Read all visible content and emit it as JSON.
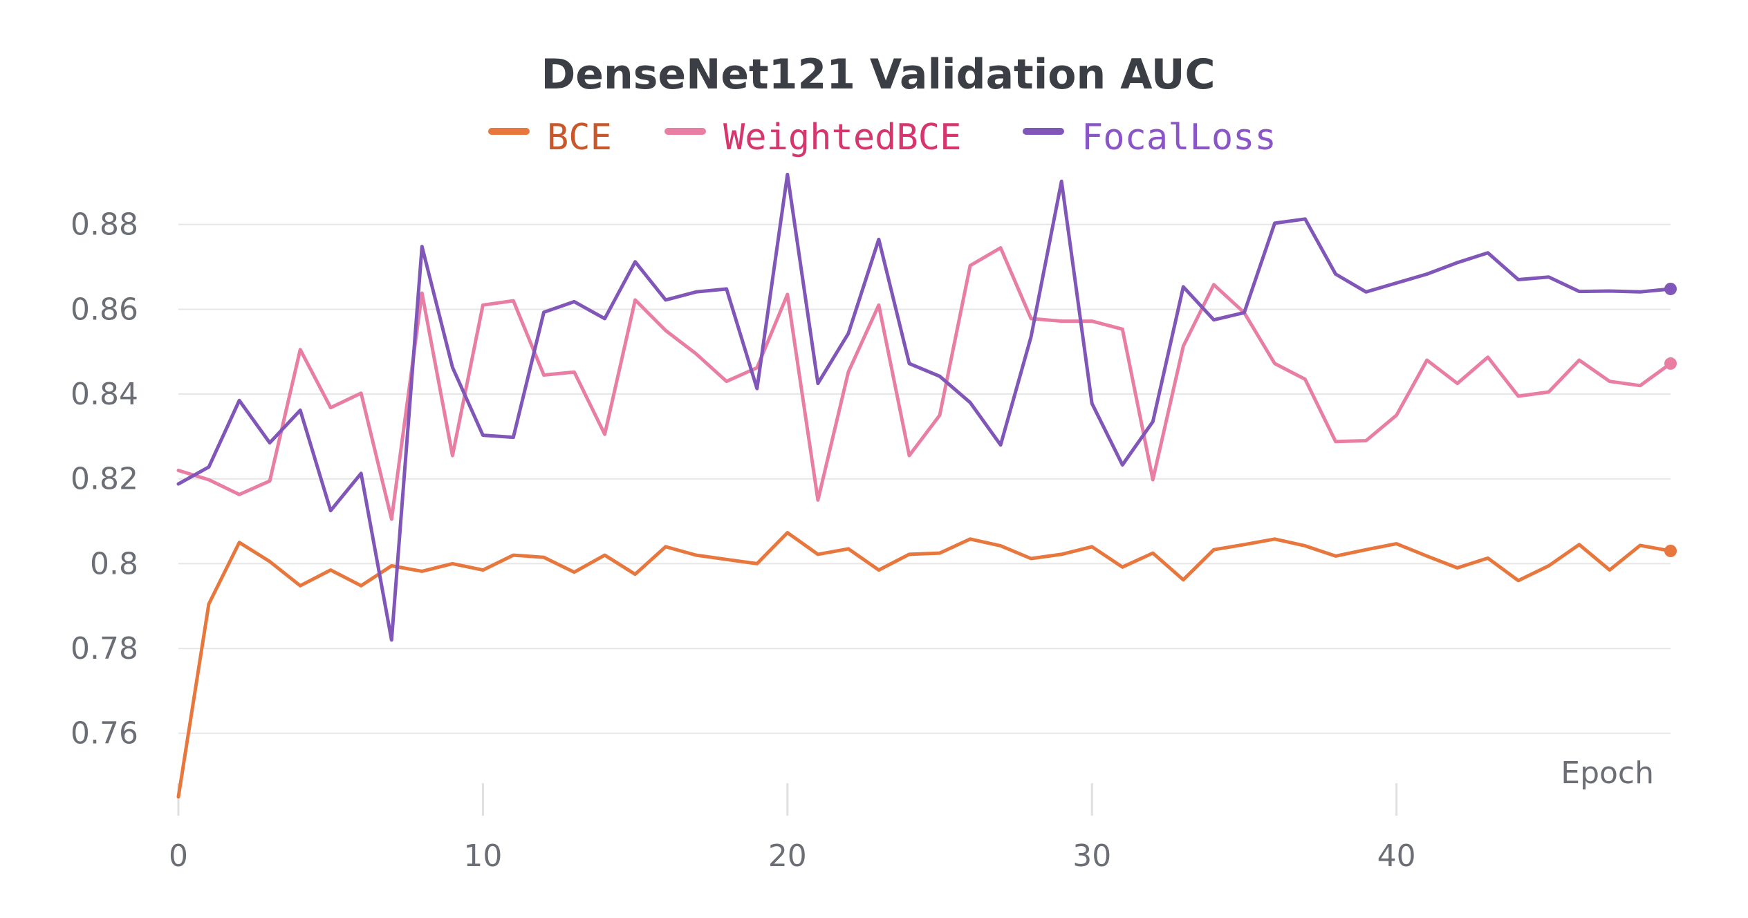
{
  "chart_data": {
    "type": "line",
    "title": "DenseNet121 Validation AUC",
    "xlabel": "Epoch",
    "ylabel": "",
    "xlim": [
      0,
      49
    ],
    "ylim": [
      0.743,
      0.893
    ],
    "x_ticks": [
      0,
      10,
      20,
      30,
      40
    ],
    "y_ticks": [
      0.76,
      0.78,
      0.8,
      0.82,
      0.84,
      0.86,
      0.88
    ],
    "y_tick_labels": [
      "0.76",
      "0.78",
      "0.8",
      "0.82",
      "0.84",
      "0.86",
      "0.88"
    ],
    "grid": true,
    "legend_position": "top-center",
    "x": [
      0,
      1,
      2,
      3,
      4,
      5,
      6,
      7,
      8,
      9,
      10,
      11,
      12,
      13,
      14,
      15,
      16,
      17,
      18,
      19,
      20,
      21,
      22,
      23,
      24,
      25,
      26,
      27,
      28,
      29,
      30,
      31,
      32,
      33,
      34,
      35,
      36,
      37,
      38,
      39,
      40,
      41,
      42,
      43,
      44,
      45,
      46,
      47,
      48,
      49
    ],
    "series": [
      {
        "name": "BCE",
        "color": "#e8773d",
        "text_color": "#c8572a",
        "values": [
          0.745,
          0.7905,
          0.805,
          0.8005,
          0.7948,
          0.7985,
          0.7948,
          0.7995,
          0.7982,
          0.8,
          0.7985,
          0.802,
          0.8015,
          0.798,
          0.802,
          0.7975,
          0.804,
          0.802,
          0.801,
          0.8,
          0.8073,
          0.8022,
          0.8035,
          0.7985,
          0.8022,
          0.8025,
          0.8058,
          0.8042,
          0.8012,
          0.8022,
          0.804,
          0.7992,
          0.8025,
          0.7962,
          0.8033,
          0.8045,
          0.8058,
          0.8042,
          0.8018,
          0.8033,
          0.8047,
          0.8018,
          0.799,
          0.8013,
          0.796,
          0.7995,
          0.8045,
          0.7985,
          0.8043,
          0.803
        ]
      },
      {
        "name": "WeightedBCE",
        "color": "#e97ea5",
        "text_color": "#d6356e",
        "values": [
          0.822,
          0.8198,
          0.8163,
          0.8195,
          0.8505,
          0.8368,
          0.8402,
          0.8105,
          0.8638,
          0.8255,
          0.861,
          0.862,
          0.8445,
          0.8452,
          0.8305,
          0.8622,
          0.855,
          0.8495,
          0.843,
          0.8462,
          0.8635,
          0.815,
          0.8452,
          0.861,
          0.8255,
          0.835,
          0.8703,
          0.8745,
          0.8578,
          0.8572,
          0.8572,
          0.8553,
          0.8198,
          0.8513,
          0.8658,
          0.8592,
          0.8472,
          0.8435,
          0.8288,
          0.829,
          0.835,
          0.848,
          0.8425,
          0.8487,
          0.8395,
          0.8405,
          0.848,
          0.843,
          0.842,
          0.8472
        ]
      },
      {
        "name": "FocalLoss",
        "color": "#8057b8",
        "text_color": "#8a55c4",
        "values": [
          0.8188,
          0.8228,
          0.8385,
          0.8285,
          0.8362,
          0.8125,
          0.8213,
          0.782,
          0.8748,
          0.8463,
          0.8303,
          0.8298,
          0.8593,
          0.8618,
          0.8578,
          0.8712,
          0.8622,
          0.8641,
          0.8648,
          0.8413,
          0.8918,
          0.8425,
          0.8543,
          0.8765,
          0.8472,
          0.8442,
          0.838,
          0.828,
          0.8535,
          0.8902,
          0.8378,
          0.8233,
          0.8335,
          0.8653,
          0.8575,
          0.8592,
          0.8803,
          0.8813,
          0.8683,
          0.8641,
          0.8662,
          0.8683,
          0.871,
          0.8733,
          0.867,
          0.8676,
          0.8642,
          0.8643,
          0.8641,
          0.8648
        ]
      }
    ]
  }
}
